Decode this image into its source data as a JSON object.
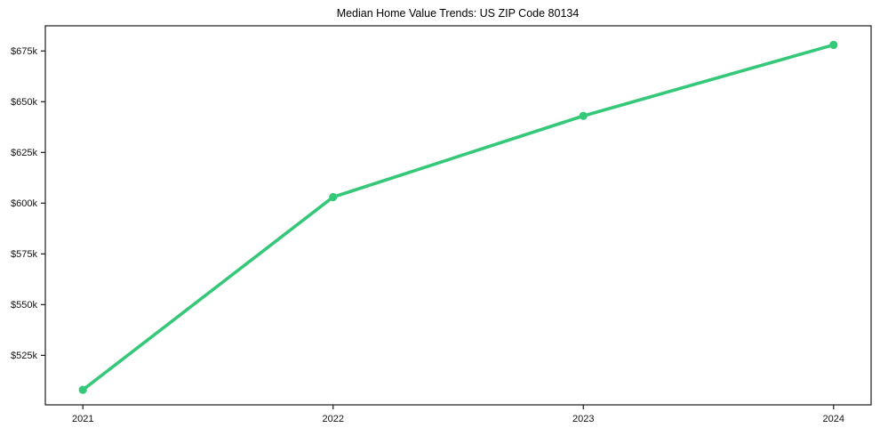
{
  "chart_data": {
    "type": "line",
    "title": "Median Home Value Trends: US ZIP Code 80134",
    "series_name": "Median Home Value",
    "x": [
      2021,
      2022,
      2023,
      2024
    ],
    "values": [
      508000,
      603000,
      643000,
      678000
    ],
    "xlabel": "",
    "ylabel": "",
    "xlim": [
      2020.85,
      2024.15
    ],
    "ylim": [
      500600,
      687400
    ],
    "xticks": [
      {
        "value": 2021,
        "label": "2021"
      },
      {
        "value": 2022,
        "label": "2022"
      },
      {
        "value": 2023,
        "label": "2023"
      },
      {
        "value": 2024,
        "label": "2024"
      }
    ],
    "yticks": [
      {
        "value": 525000,
        "label": "$525k"
      },
      {
        "value": 550000,
        "label": "$550k"
      },
      {
        "value": 575000,
        "label": "$575k"
      },
      {
        "value": 600000,
        "label": "$600k"
      },
      {
        "value": 625000,
        "label": "$625k"
      },
      {
        "value": 650000,
        "label": "$650k"
      },
      {
        "value": 675000,
        "label": "$675k"
      }
    ],
    "grid": false,
    "legend_position": "none",
    "line_color": "#35c878",
    "marker_color": "#35c878",
    "axis_color": "#1a1a1a",
    "background_color": "#ffffff"
  }
}
